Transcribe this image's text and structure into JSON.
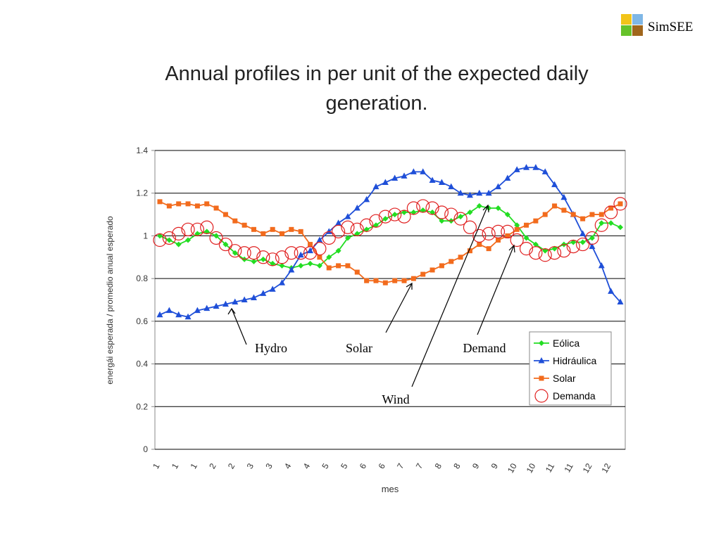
{
  "logo": "SimSEE",
  "chart_data": {
    "type": "line",
    "title": "Annual profiles in per unit of the expected daily generation.",
    "x_label": "mes",
    "y_label": "energái esperada / promedio anual esperado",
    "categories": [
      "1",
      null,
      "1",
      null,
      "1",
      null,
      "2",
      null,
      "2",
      null,
      "3",
      null,
      "3",
      null,
      "4",
      null,
      "4",
      null,
      "5",
      null,
      "5",
      null,
      "6",
      null,
      "6",
      null,
      "7",
      null,
      "7",
      null,
      "8",
      null,
      "8",
      null,
      "9",
      null,
      "9",
      null,
      "10",
      null,
      "10",
      null,
      "11",
      null,
      "11",
      null,
      "12",
      null,
      "12",
      null
    ],
    "ylim": [
      0,
      1.4
    ],
    "yticks": [
      0,
      0.2,
      0.4,
      0.6,
      0.8,
      1,
      1.2,
      1.4
    ],
    "grid": true,
    "legend": "lower right",
    "annotations": [
      "Hydro",
      "Solar",
      "Demand",
      "Wind"
    ],
    "series": [
      {
        "name": "Eólica",
        "color": "#22dd22",
        "marker": "diamond",
        "line": true,
        "values": [
          1.0,
          0.98,
          0.96,
          0.98,
          1.01,
          1.02,
          1.0,
          0.96,
          0.92,
          0.89,
          0.88,
          0.89,
          0.87,
          0.86,
          0.85,
          0.86,
          0.87,
          0.86,
          0.9,
          0.93,
          0.99,
          1.01,
          1.03,
          1.05,
          1.08,
          1.1,
          1.11,
          1.11,
          1.12,
          1.11,
          1.07,
          1.07,
          1.09,
          1.11,
          1.14,
          1.13,
          1.13,
          1.1,
          1.05,
          0.99,
          0.96,
          0.93,
          0.94,
          0.96,
          0.97,
          0.97,
          0.99,
          1.06,
          1.06,
          1.04
        ]
      },
      {
        "name": "Hidráulica",
        "color": "#1f4fd8",
        "marker": "triangle",
        "line": true,
        "values": [
          0.63,
          0.65,
          0.63,
          0.62,
          0.65,
          0.66,
          0.67,
          0.68,
          0.69,
          0.7,
          0.71,
          0.73,
          0.75,
          0.78,
          0.84,
          0.91,
          0.93,
          0.98,
          1.02,
          1.06,
          1.09,
          1.13,
          1.17,
          1.23,
          1.25,
          1.27,
          1.28,
          1.3,
          1.3,
          1.26,
          1.25,
          1.23,
          1.2,
          1.19,
          1.2,
          1.2,
          1.23,
          1.27,
          1.31,
          1.32,
          1.32,
          1.3,
          1.24,
          1.18,
          1.1,
          1.01,
          0.95,
          0.86,
          0.74,
          0.69
        ]
      },
      {
        "name": "Solar",
        "color": "#f26b1d",
        "marker": "square",
        "line": true,
        "values": [
          1.16,
          1.14,
          1.15,
          1.15,
          1.14,
          1.15,
          1.13,
          1.1,
          1.07,
          1.05,
          1.03,
          1.01,
          1.03,
          1.01,
          1.03,
          1.02,
          0.96,
          0.9,
          0.85,
          0.86,
          0.86,
          0.83,
          0.79,
          0.79,
          0.78,
          0.79,
          0.79,
          0.8,
          0.82,
          0.84,
          0.86,
          0.88,
          0.9,
          0.93,
          0.96,
          0.94,
          0.98,
          1.0,
          1.03,
          1.05,
          1.07,
          1.1,
          1.14,
          1.12,
          1.1,
          1.08,
          1.1,
          1.1,
          1.13,
          1.15
        ]
      },
      {
        "name": "Demanda",
        "color": "#e02020",
        "marker": "circle",
        "line": false,
        "values": [
          0.98,
          0.99,
          1.01,
          1.03,
          1.03,
          1.04,
          0.99,
          0.96,
          0.93,
          0.92,
          0.92,
          0.9,
          0.89,
          0.9,
          0.92,
          0.92,
          0.92,
          0.94,
          0.99,
          1.02,
          1.04,
          1.03,
          1.05,
          1.07,
          1.09,
          1.1,
          1.09,
          1.13,
          1.14,
          1.13,
          1.11,
          1.1,
          1.08,
          1.04,
          1.0,
          1.01,
          1.02,
          1.02,
          0.98,
          0.94,
          0.92,
          0.91,
          0.92,
          0.93,
          0.95,
          0.96,
          0.99,
          1.05,
          1.11,
          1.15
        ]
      }
    ]
  }
}
